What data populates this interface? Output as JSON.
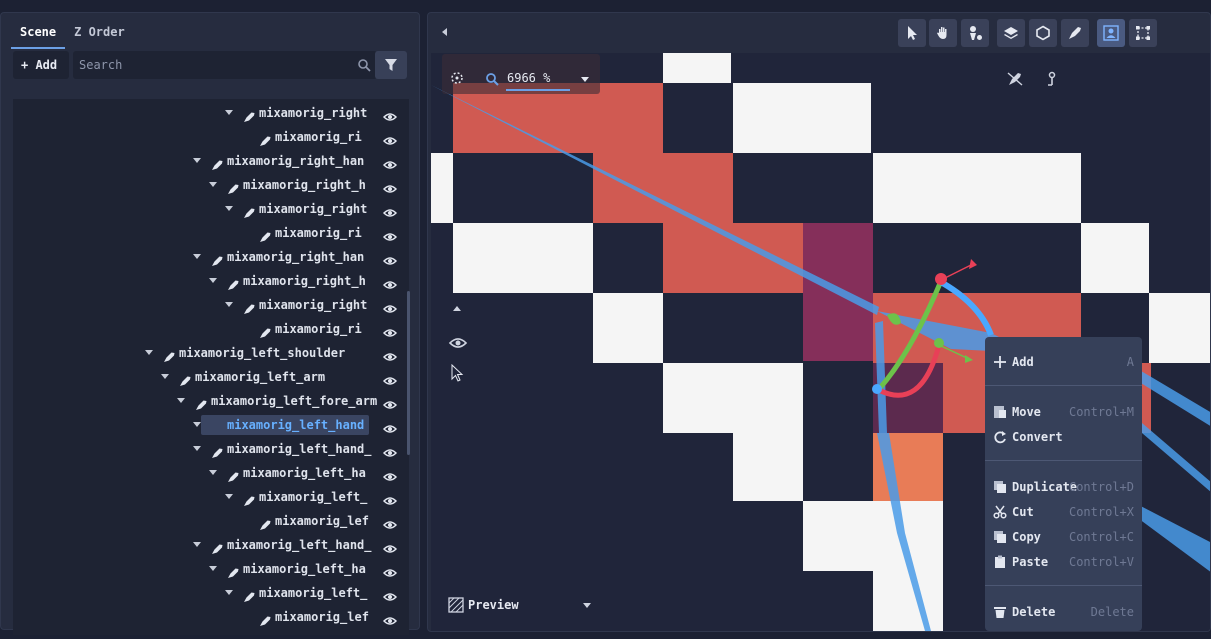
{
  "scene": {
    "tabs": [
      "Scene",
      "Z Order"
    ],
    "add_label": "+ Add",
    "search_placeholder": "Search",
    "tree": [
      {
        "label": "mixamorig_right",
        "indent": 3,
        "arrow": true
      },
      {
        "label": "mixamorig_ri",
        "indent": 4,
        "arrow": false
      },
      {
        "label": "mixamorig_right_han",
        "indent": 1,
        "arrow": true
      },
      {
        "label": "mixamorig_right_h",
        "indent": 2,
        "arrow": true
      },
      {
        "label": "mixamorig_right",
        "indent": 3,
        "arrow": true
      },
      {
        "label": "mixamorig_ri",
        "indent": 4,
        "arrow": false
      },
      {
        "label": "mixamorig_right_han",
        "indent": 1,
        "arrow": true
      },
      {
        "label": "mixamorig_right_h",
        "indent": 2,
        "arrow": true
      },
      {
        "label": "mixamorig_right",
        "indent": 3,
        "arrow": true
      },
      {
        "label": "mixamorig_ri",
        "indent": 4,
        "arrow": false
      },
      {
        "label": "mixamorig_left_shoulder",
        "indent": -2,
        "arrow": true
      },
      {
        "label": "mixamorig_left_arm",
        "indent": -1,
        "arrow": true
      },
      {
        "label": "mixamorig_left_fore_arm",
        "indent": 0,
        "arrow": true
      },
      {
        "label": "mixamorig_left_hand",
        "indent": 1,
        "arrow": true,
        "selected": true
      },
      {
        "label": "mixamorig_left_hand_",
        "indent": 1,
        "arrow": true
      },
      {
        "label": "mixamorig_left_ha",
        "indent": 2,
        "arrow": true
      },
      {
        "label": "mixamorig_left_",
        "indent": 3,
        "arrow": true
      },
      {
        "label": "mixamorig_lef",
        "indent": 4,
        "arrow": false
      },
      {
        "label": "mixamorig_left_hand_",
        "indent": 1,
        "arrow": true
      },
      {
        "label": "mixamorig_left_ha",
        "indent": 2,
        "arrow": true
      },
      {
        "label": "mixamorig_left_",
        "indent": 3,
        "arrow": true
      },
      {
        "label": "mixamorig_lef",
        "indent": 4,
        "arrow": false
      }
    ]
  },
  "viewport": {
    "zoom": "6966 %",
    "preview_label": "Preview",
    "tools": [
      "select-tool",
      "pan-tool",
      "bone-tool",
      "layers-tool",
      "polygon-tool",
      "rig-tool",
      "skeleton-view-tool",
      "transform-tool"
    ]
  },
  "context_menu": {
    "items": [
      {
        "label": "Add",
        "shortcut": "A",
        "icon": "plus-icon"
      },
      {
        "label": "Move",
        "shortcut": "Control+M",
        "icon": "move-icon"
      },
      {
        "label": "Convert",
        "shortcut": "",
        "icon": "convert-icon"
      },
      {
        "label": "Duplicate",
        "shortcut": "Control+D",
        "icon": "duplicate-icon"
      },
      {
        "label": "Cut",
        "shortcut": "Control+X",
        "icon": "cut-icon"
      },
      {
        "label": "Copy",
        "shortcut": "Control+C",
        "icon": "copy-icon"
      },
      {
        "label": "Paste",
        "shortcut": "Control+V",
        "icon": "paste-icon"
      },
      {
        "label": "Delete",
        "shortcut": "Delete",
        "icon": "delete-icon"
      }
    ]
  },
  "colors": {
    "accent": "#6ca0e6",
    "selected_text": "#67b0ff",
    "sprite_red": "#d05a52",
    "sprite_purple": "#852f5a",
    "sprite_orange": "#e87c57",
    "checker_light": "#f5f5f5",
    "checker_dark": "#20253a"
  }
}
